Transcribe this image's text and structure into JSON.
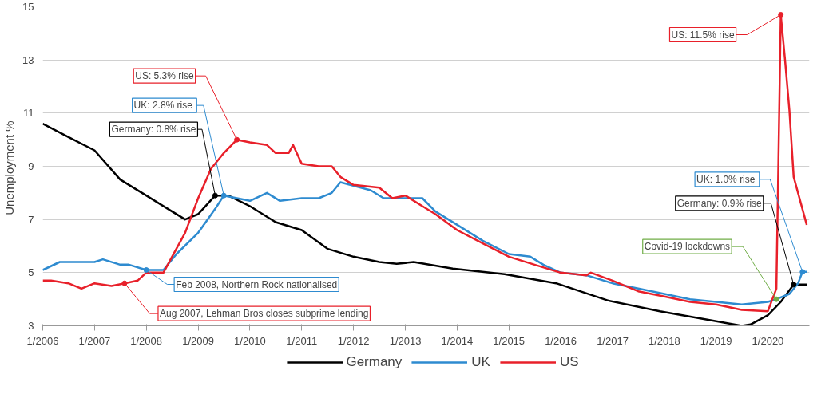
{
  "chart_data": {
    "type": "line",
    "ylabel": "Unemployment  %",
    "xlim": [
      "2006-01",
      "2020-10-20"
    ],
    "ylim": [
      3,
      15
    ],
    "yticks": [
      3,
      5,
      7,
      9,
      11,
      13,
      15
    ],
    "xticks": [
      {
        "value": "2006-01",
        "label": "1/2006"
      },
      {
        "value": "2007-01",
        "label": "1/2007"
      },
      {
        "value": "2008-01",
        "label": "1/2008"
      },
      {
        "value": "2009-01",
        "label": "1/2009"
      },
      {
        "value": "2010-01",
        "label": "1/2010"
      },
      {
        "value": "2011-01",
        "label": "1/2011"
      },
      {
        "value": "2012-01",
        "label": "1/2012"
      },
      {
        "value": "2013-01",
        "label": "1/2013"
      },
      {
        "value": "2014-01",
        "label": "1/2014"
      },
      {
        "value": "2015-01",
        "label": "1/2015"
      },
      {
        "value": "2016-01",
        "label": "1/2016"
      },
      {
        "value": "2017-01",
        "label": "1/2017"
      },
      {
        "value": "2018-01",
        "label": "1/2018"
      },
      {
        "value": "2019-01",
        "label": "1/2019"
      },
      {
        "value": "2020-01",
        "label": "1/2020"
      }
    ],
    "grid": "y",
    "legend": "bottom",
    "marker": "none",
    "line_style": "solid",
    "series": [
      {
        "name": "Germany",
        "color": "#000000",
        "x": [
          "2006-01",
          "2006-07",
          "2007-01",
          "2007-07",
          "2008-01",
          "2008-07",
          "2008-10",
          "2009-01",
          "2009-05",
          "2009-08",
          "2010-01",
          "2010-07",
          "2011-01",
          "2011-07",
          "2012-01",
          "2012-07",
          "2012-11",
          "2013-03",
          "2013-12",
          "2014-12",
          "2015-12",
          "2016-12",
          "2017-12",
          "2018-12",
          "2019-07",
          "2019-09",
          "2020-01",
          "2020-04",
          "2020-07",
          "2020-10"
        ],
        "values": [
          10.6,
          10.1,
          9.6,
          8.5,
          7.9,
          7.3,
          7.0,
          7.2,
          7.9,
          7.9,
          7.5,
          6.9,
          6.6,
          5.9,
          5.6,
          5.4,
          5.33,
          5.4,
          5.15,
          4.94,
          4.6,
          3.95,
          3.55,
          3.2,
          3.0,
          3.05,
          3.4,
          3.9,
          4.55,
          4.55
        ]
      },
      {
        "name": "UK",
        "color": "#2e8bd0",
        "x": [
          "2006-01",
          "2006-05",
          "2007-01",
          "2007-03",
          "2007-07",
          "2007-09",
          "2008-01",
          "2008-05",
          "2008-08",
          "2009-01",
          "2009-05",
          "2009-07",
          "2009-10",
          "2010-01",
          "2010-05",
          "2010-08",
          "2011-01",
          "2011-05",
          "2011-08",
          "2011-10",
          "2012-05",
          "2012-08",
          "2013-01",
          "2013-05",
          "2013-08",
          "2014-01",
          "2014-07",
          "2015-01",
          "2015-06",
          "2015-09",
          "2016-01",
          "2016-07",
          "2017-01",
          "2017-07",
          "2018-01",
          "2018-07",
          "2019-01",
          "2019-07",
          "2020-01",
          "2020-03",
          "2020-06",
          "2020-08",
          "2020-09",
          "2020-10"
        ],
        "values": [
          5.1,
          5.4,
          5.4,
          5.5,
          5.3,
          5.3,
          5.1,
          5.1,
          5.7,
          6.5,
          7.4,
          7.9,
          7.8,
          7.7,
          8.0,
          7.7,
          7.8,
          7.8,
          8.0,
          8.4,
          8.1,
          7.8,
          7.8,
          7.8,
          7.3,
          6.8,
          6.2,
          5.7,
          5.6,
          5.3,
          5.0,
          4.9,
          4.6,
          4.4,
          4.2,
          4.0,
          3.9,
          3.8,
          3.9,
          4.0,
          4.2,
          4.6,
          5.03,
          5.03
        ]
      },
      {
        "name": "US",
        "color": "#e8202a",
        "x": [
          "2006-01",
          "2006-03",
          "2006-07",
          "2006-10",
          "2007-01",
          "2007-05",
          "2007-08",
          "2007-11",
          "2008-01",
          "2008-05",
          "2008-07",
          "2008-10",
          "2009-01",
          "2009-04",
          "2009-07",
          "2009-10",
          "2010-01",
          "2010-05",
          "2010-07",
          "2010-10",
          "2010-11",
          "2011-01",
          "2011-05",
          "2011-08",
          "2011-10",
          "2012-01",
          "2012-07",
          "2012-10",
          "2013-01",
          "2013-05",
          "2013-08",
          "2014-01",
          "2014-07",
          "2015-01",
          "2015-07",
          "2016-01",
          "2016-07",
          "2016-08",
          "2017-01",
          "2017-07",
          "2018-01",
          "2018-07",
          "2019-01",
          "2019-07",
          "2020-01",
          "2020-03",
          "2020-04",
          "2020-05",
          "2020-06",
          "2020-07",
          "2020-10"
        ],
        "values": [
          4.7,
          4.7,
          4.6,
          4.4,
          4.6,
          4.5,
          4.6,
          4.7,
          5.0,
          5.0,
          5.6,
          6.5,
          7.8,
          8.9,
          9.5,
          10.0,
          9.9,
          9.8,
          9.5,
          9.5,
          9.8,
          9.1,
          9.0,
          9.0,
          8.6,
          8.3,
          8.2,
          7.8,
          7.9,
          7.5,
          7.2,
          6.6,
          6.1,
          5.6,
          5.3,
          5.0,
          4.9,
          5.0,
          4.7,
          4.3,
          4.1,
          3.9,
          3.8,
          3.6,
          3.55,
          4.4,
          14.7,
          13.0,
          11.1,
          8.6,
          6.8
        ]
      }
    ],
    "annotations": [
      {
        "text": "US: 5.3% rise",
        "x": "2009-10",
        "y": 10.0
      },
      {
        "text": "UK: 2.8%  rise",
        "x": "2009-07",
        "y": 7.9
      },
      {
        "text": "Germany: 0.8% rise",
        "x": "2009-05",
        "y": 7.9
      },
      {
        "text": "Feb 2008, Northern Rock nationalised",
        "x": "2008-01",
        "y": 5.1
      },
      {
        "text": "Aug 2007, Lehman Bros closes subprime lending",
        "x": "2007-08",
        "y": 4.6
      },
      {
        "text": "US: 11.5% rise",
        "x": "2020-04",
        "y": 14.7
      },
      {
        "text": "UK: 1.0%  rise",
        "x": "2020-09",
        "y": 5.03
      },
      {
        "text": "Germany: 0.9% rise",
        "x": "2020-07",
        "y": 4.55
      },
      {
        "text": "Covid-19 lockdowns",
        "x": "2020-03",
        "y": 4.0
      }
    ]
  }
}
